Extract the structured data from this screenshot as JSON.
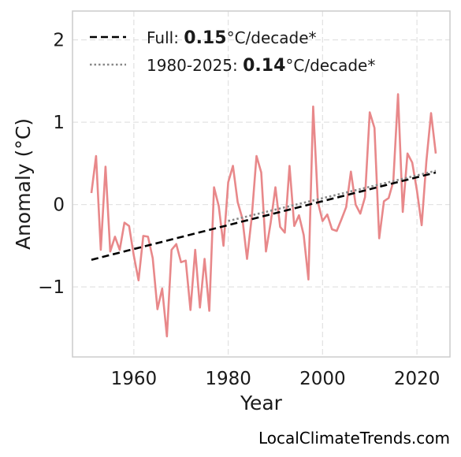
{
  "chart_data": {
    "type": "line",
    "xlabel": "Year",
    "ylabel": "Anomaly (°C)",
    "xlim": [
      1947,
      2027
    ],
    "ylim": [
      -1.85,
      2.35
    ],
    "x_ticks": [
      1960,
      1980,
      2000,
      2020
    ],
    "y_ticks": [
      -1,
      0,
      1,
      2
    ],
    "y_tick_labels": [
      "−1",
      "0",
      "1",
      "2"
    ],
    "grid": true,
    "legend_position": "top-left",
    "series": [
      {
        "color": "#e8888a",
        "style": "solid",
        "x": [
          1951,
          1952,
          1953,
          1954,
          1955,
          1956,
          1957,
          1958,
          1959,
          1960,
          1961,
          1962,
          1963,
          1964,
          1965,
          1966,
          1967,
          1968,
          1969,
          1970,
          1971,
          1972,
          1973,
          1974,
          1975,
          1976,
          1977,
          1978,
          1979,
          1980,
          1981,
          1982,
          1983,
          1984,
          1985,
          1986,
          1987,
          1988,
          1989,
          1990,
          1991,
          1992,
          1993,
          1994,
          1995,
          1996,
          1997,
          1998,
          1999,
          2000,
          2001,
          2002,
          2003,
          2004,
          2005,
          2006,
          2007,
          2008,
          2009,
          2010,
          2011,
          2012,
          2013,
          2014,
          2015,
          2016,
          2017,
          2018,
          2019,
          2020,
          2021,
          2022,
          2023,
          2024
        ],
        "y": [
          0.14,
          0.59,
          -0.55,
          0.46,
          -0.57,
          -0.39,
          -0.55,
          -0.22,
          -0.26,
          -0.62,
          -0.92,
          -0.38,
          -0.39,
          -0.65,
          -1.27,
          -1.02,
          -1.6,
          -0.55,
          -0.48,
          -0.7,
          -0.68,
          -1.28,
          -0.55,
          -1.25,
          -0.66,
          -1.29,
          0.21,
          -0.02,
          -0.5,
          0.27,
          0.47,
          0.03,
          -0.17,
          -0.66,
          -0.15,
          0.59,
          0.39,
          -0.57,
          -0.22,
          0.21,
          -0.27,
          -0.34,
          0.47,
          -0.26,
          -0.13,
          -0.37,
          -0.91,
          1.19,
          0.03,
          -0.2,
          -0.12,
          -0.3,
          -0.32,
          -0.18,
          -0.03,
          0.4,
          0.0,
          -0.11,
          0.09,
          1.12,
          0.93,
          -0.41,
          0.04,
          0.08,
          0.28,
          1.34,
          -0.09,
          0.62,
          0.51,
          0.17,
          -0.25,
          0.53,
          1.11,
          0.62
        ]
      },
      {
        "name": "Full",
        "color": "#000000",
        "style": "dashed",
        "x": [
          1951,
          2024
        ],
        "y": [
          -0.67,
          0.39
        ]
      },
      {
        "name": "1980-2025",
        "color": "#888888",
        "style": "dotted",
        "x": [
          1980,
          2024
        ],
        "y": [
          -0.2,
          0.41
        ]
      }
    ],
    "legend": [
      {
        "label_prefix": "Full: ",
        "value": "0.15",
        "label_suffix": "°C/decade*"
      },
      {
        "label_prefix": "1980-2025: ",
        "value": "0.14",
        "label_suffix": "°C/decade*"
      }
    ]
  },
  "credit": "LocalClimateTrends.com"
}
